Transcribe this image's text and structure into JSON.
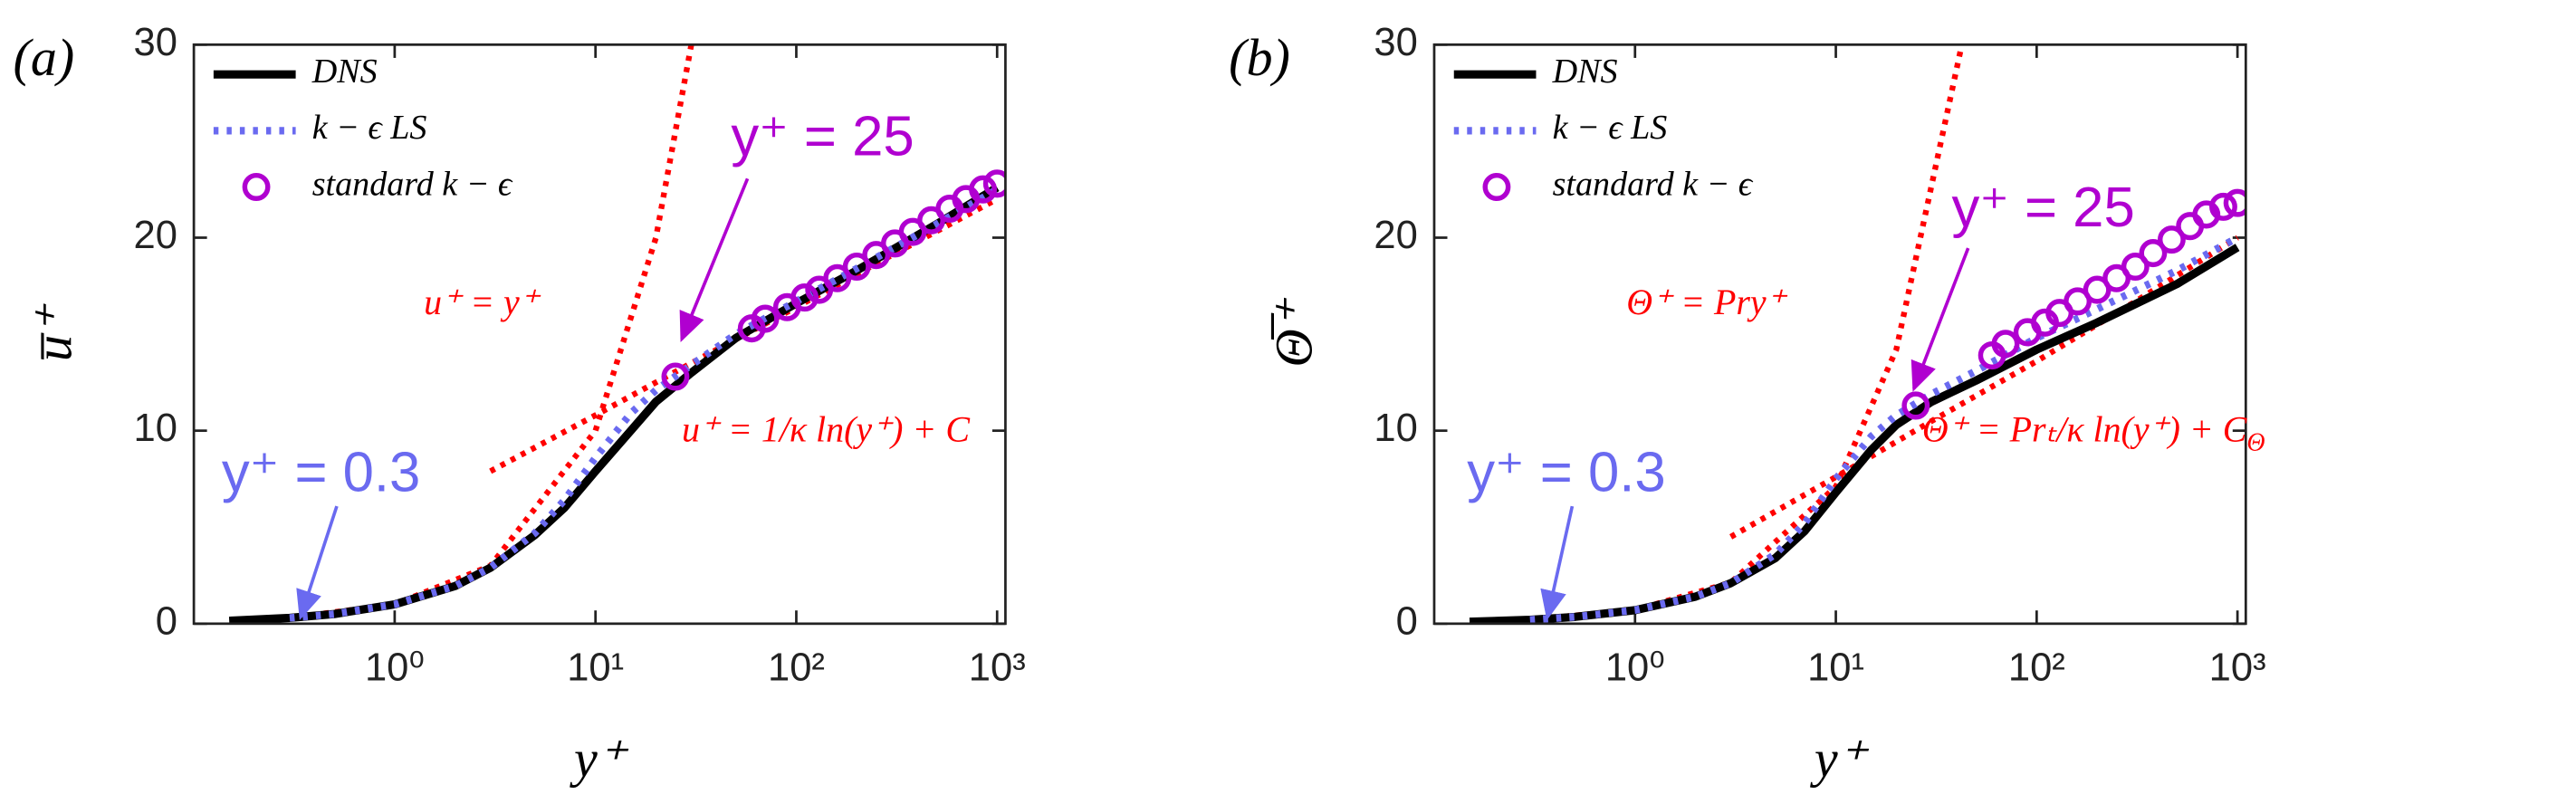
{
  "chart_data": [
    {
      "type": "line",
      "panel_label": "(a)",
      "x_label": "y⁺",
      "y_label": "u̅⁺",
      "xscale": "log",
      "xlim": [
        0.1,
        1100
      ],
      "ylim": [
        0,
        30
      ],
      "xticks": [
        {
          "value": 1,
          "label": "10⁰"
        },
        {
          "value": 10,
          "label": "10¹"
        },
        {
          "value": 100,
          "label": "10²"
        },
        {
          "value": 1000,
          "label": "10³"
        }
      ],
      "yticks": [
        0,
        10,
        20,
        30
      ],
      "legend": "upper left",
      "series": [
        {
          "name": "DNS",
          "style": "solid",
          "color": "#000000",
          "x": [
            0.15,
            0.3,
            0.5,
            1,
            2,
            3,
            5,
            7,
            10,
            15,
            20,
            30,
            50,
            100,
            200,
            500,
            1000
          ],
          "values": [
            0.15,
            0.3,
            0.5,
            1,
            1.95,
            2.9,
            4.6,
            6.0,
            7.9,
            10.0,
            11.5,
            13.0,
            14.8,
            16.6,
            18.3,
            20.7,
            22.6
          ]
        },
        {
          "name": "k − ϵ LS",
          "style": "dotted",
          "color": "#6a6af0",
          "x": [
            0.3,
            0.5,
            1,
            2,
            3,
            5,
            7,
            10,
            15,
            20,
            30,
            50,
            100,
            200,
            500,
            1000
          ],
          "values": [
            0.3,
            0.5,
            1,
            1.95,
            2.9,
            4.7,
            6.4,
            8.6,
            10.9,
            12.1,
            13.4,
            15.0,
            16.7,
            18.4,
            20.7,
            22.5
          ]
        },
        {
          "name": "standard k − ϵ",
          "style": "markers",
          "color": "#b000d0",
          "x": [
            25,
            60,
            70,
            90,
            110,
            130,
            160,
            200,
            250,
            310,
            380,
            470,
            580,
            700,
            850,
            1000
          ],
          "values": [
            12.8,
            15.3,
            15.8,
            16.4,
            16.9,
            17.3,
            17.9,
            18.5,
            19.1,
            19.7,
            20.3,
            20.9,
            21.5,
            22.0,
            22.5,
            22.8
          ]
        }
      ],
      "reference_lines": [
        {
          "color": "#ff0000",
          "x": [
            0.3,
            1,
            3,
            10,
            20,
            30
          ],
          "values": [
            0.3,
            1,
            3,
            10,
            20,
            30
          ]
        },
        {
          "color": "#ff0000",
          "x": [
            3,
            10,
            30,
            100,
            300,
            1000
          ],
          "values": [
            7.9,
            10.8,
            13.5,
            16.4,
            19.1,
            22.0
          ]
        }
      ],
      "annotations": [
        {
          "text": "y⁺ = 25",
          "color": "#b000d0"
        },
        {
          "text": "y⁺ = 0.3",
          "color": "#6a6af0"
        },
        {
          "text": "u⁺ = y⁺",
          "color": "#ff0000"
        },
        {
          "text": "u⁺ = 1/κ ln(y⁺) + C",
          "color": "#ff0000"
        }
      ]
    },
    {
      "type": "line",
      "panel_label": "(b)",
      "x_label": "y⁺",
      "y_label": "Θ̅⁺",
      "xscale": "log",
      "xlim": [
        0.1,
        1100
      ],
      "ylim": [
        0,
        30
      ],
      "xticks": [
        {
          "value": 1,
          "label": "10⁰"
        },
        {
          "value": 10,
          "label": "10¹"
        },
        {
          "value": 100,
          "label": "10²"
        },
        {
          "value": 1000,
          "label": "10³"
        }
      ],
      "yticks": [
        0,
        10,
        20,
        30
      ],
      "legend": "upper left",
      "series": [
        {
          "name": "DNS",
          "style": "solid",
          "color": "#000000",
          "x": [
            0.15,
            0.3,
            0.5,
            1,
            2,
            3,
            5,
            7,
            10,
            15,
            20,
            30,
            50,
            100,
            200,
            500,
            1000
          ],
          "values": [
            0.1,
            0.2,
            0.35,
            0.7,
            1.4,
            2.1,
            3.4,
            4.8,
            6.8,
            9.0,
            10.3,
            11.5,
            12.6,
            14.2,
            15.6,
            17.6,
            19.5
          ]
        },
        {
          "name": "k − ϵ LS",
          "style": "dotted",
          "color": "#6a6af0",
          "x": [
            0.3,
            0.5,
            1,
            2,
            3,
            5,
            7,
            10,
            15,
            20,
            30,
            50,
            100,
            200,
            500,
            1000
          ],
          "values": [
            0.2,
            0.35,
            0.7,
            1.4,
            2.1,
            3.6,
            5.2,
            7.5,
            9.7,
            10.8,
            11.9,
            13.1,
            14.8,
            16.3,
            18.3,
            20.0
          ]
        },
        {
          "name": "standard k − ϵ",
          "style": "markers",
          "color": "#b000d0",
          "x": [
            25,
            60,
            70,
            90,
            110,
            130,
            160,
            200,
            250,
            310,
            380,
            470,
            580,
            700,
            850,
            1000
          ],
          "values": [
            11.3,
            13.9,
            14.5,
            15.1,
            15.6,
            16.1,
            16.7,
            17.3,
            17.9,
            18.5,
            19.2,
            19.9,
            20.6,
            21.2,
            21.6,
            21.8
          ]
        }
      ],
      "reference_lines": [
        {
          "color": "#ff0000",
          "x": [
            0.3,
            1,
            3,
            10,
            20,
            42
          ],
          "values": [
            0.21,
            0.71,
            2.13,
            7.1,
            14.2,
            29.8
          ]
        },
        {
          "color": "#ff0000",
          "x": [
            3,
            10,
            30,
            100,
            300,
            1000
          ],
          "values": [
            4.5,
            7.6,
            10.5,
            13.6,
            16.6,
            20.0
          ]
        }
      ],
      "annotations": [
        {
          "text": "y⁺ = 25",
          "color": "#b000d0"
        },
        {
          "text": "y⁺ = 0.3",
          "color": "#6a6af0"
        },
        {
          "text": "Θ⁺ = Pry⁺",
          "color": "#ff0000"
        },
        {
          "text": "Θ⁺ = Prₜ/κ ln(y⁺) + C",
          "sub": "Θ",
          "color": "#ff0000"
        }
      ]
    }
  ]
}
